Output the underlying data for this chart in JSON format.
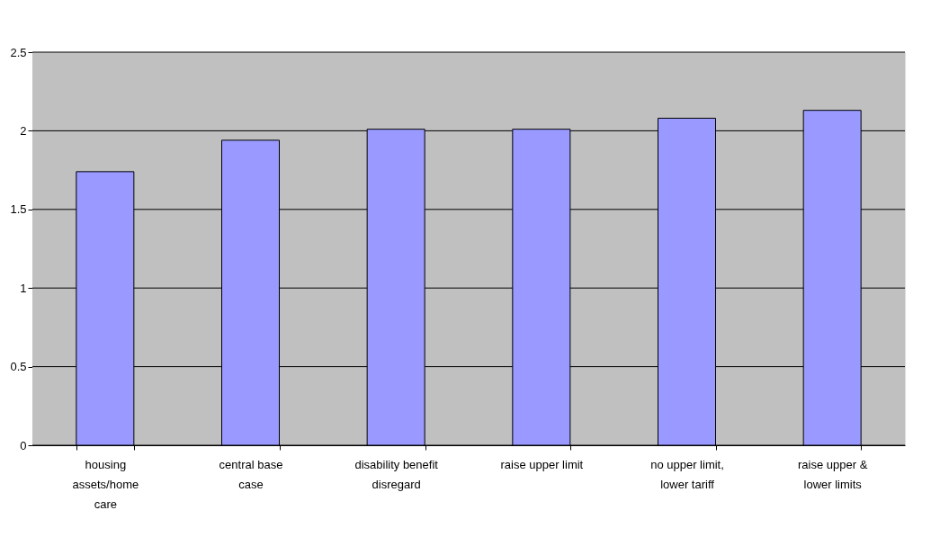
{
  "chart_data": {
    "type": "bar",
    "categories": [
      "housing\nassets/home\ncare",
      "central  base\ncase",
      "disability benefit\ndisregard",
      "raise upper limit",
      "no upper limit,\nlower tariff",
      "raise upper &\nlower limits"
    ],
    "values": [
      1.74,
      1.94,
      2.01,
      2.01,
      2.08,
      2.13
    ],
    "color": "#9999ff",
    "ylim": [
      0,
      2.5
    ],
    "yticks": [
      0,
      0.5,
      1,
      1.5,
      2,
      2.5
    ],
    "grid": "y"
  }
}
